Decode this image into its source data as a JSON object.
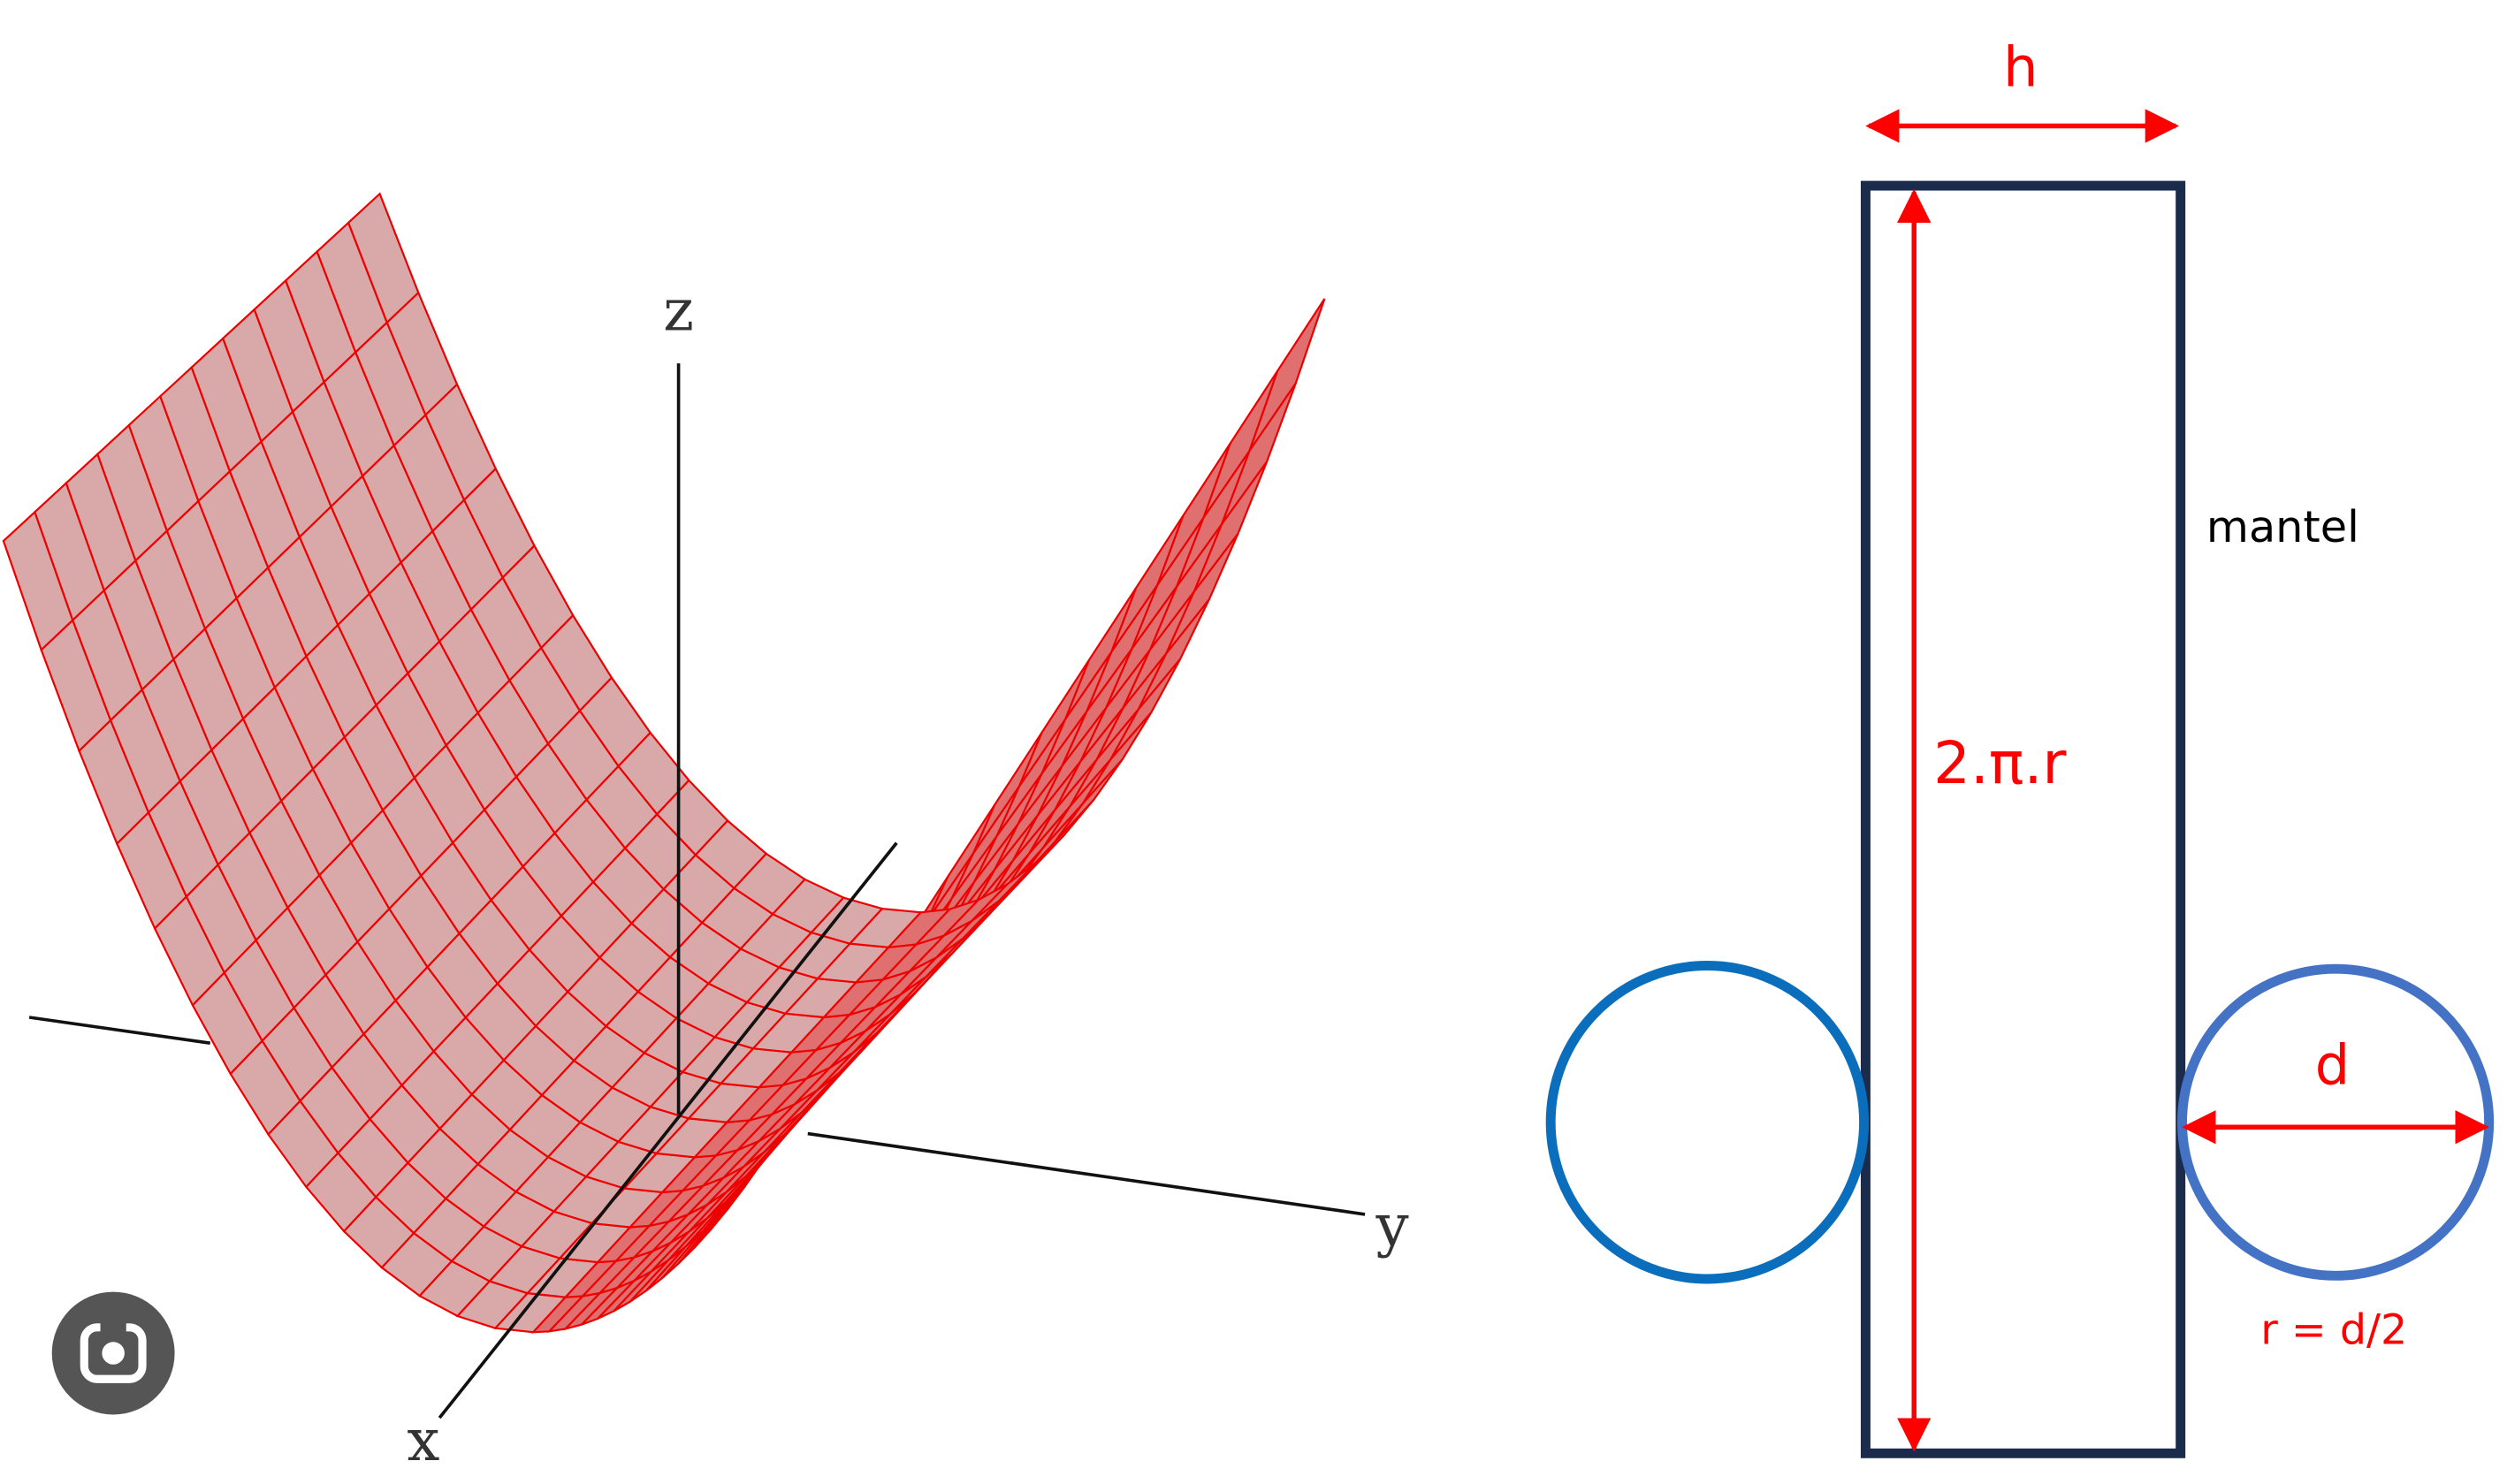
{
  "surface_plot": {
    "axis_labels": {
      "z": "z",
      "y": "y",
      "x": "x"
    }
  },
  "cylinder_net": {
    "labels": {
      "height": "h",
      "side": "mantel",
      "circumference": "2.π.r",
      "diameter": "d",
      "radius": "r = d/2"
    }
  }
}
